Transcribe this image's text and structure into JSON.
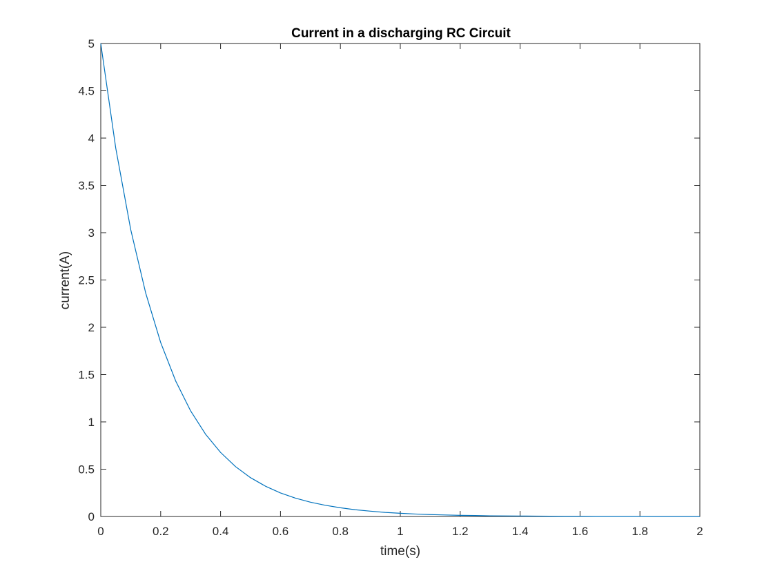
{
  "chart_data": {
    "type": "line",
    "title": "Current in a discharging RC Circuit",
    "xlabel": "time(s)",
    "ylabel": "current(A)",
    "xlim": [
      0,
      2
    ],
    "ylim": [
      0,
      5
    ],
    "xticks": [
      0,
      0.2,
      0.4,
      0.6,
      0.8,
      1,
      1.2,
      1.4,
      1.6,
      1.8,
      2
    ],
    "xtick_labels": [
      "0",
      "0.2",
      "0.4",
      "0.6",
      "0.8",
      "1",
      "1.2",
      "1.4",
      "1.6",
      "1.8",
      "2"
    ],
    "yticks": [
      0,
      0.5,
      1,
      1.5,
      2,
      2.5,
      3,
      3.5,
      4,
      4.5,
      5
    ],
    "ytick_labels": [
      "0",
      "0.5",
      "1",
      "1.5",
      "2",
      "2.5",
      "3",
      "3.5",
      "4",
      "4.5",
      "5"
    ],
    "grid": false,
    "box": true,
    "series": [
      {
        "color": "#0072BD",
        "x": [
          0,
          0.05,
          0.1,
          0.15,
          0.2,
          0.25,
          0.3,
          0.35,
          0.4,
          0.45,
          0.5,
          0.55,
          0.6,
          0.65,
          0.7,
          0.75,
          0.8,
          0.85,
          0.9,
          0.95,
          1.0,
          1.05,
          1.1,
          1.15,
          1.2,
          1.25,
          1.3,
          1.35,
          1.4,
          1.45,
          1.5,
          1.55,
          1.6,
          1.65,
          1.7,
          1.75,
          1.8,
          1.85,
          1.9,
          1.95,
          2.0
        ],
        "y": [
          5.0,
          3.894,
          3.033,
          2.362,
          1.839,
          1.433,
          1.116,
          0.869,
          0.677,
          0.527,
          0.41,
          0.32,
          0.249,
          0.194,
          0.151,
          0.118,
          0.092,
          0.071,
          0.056,
          0.043,
          0.034,
          0.026,
          0.02,
          0.016,
          0.012,
          0.01,
          0.007,
          0.006,
          0.005,
          0.004,
          0.003,
          0.002,
          0.002,
          0.001,
          0.001,
          0.001,
          0.001,
          0.0,
          0.0,
          0.0,
          0.0
        ]
      }
    ]
  }
}
